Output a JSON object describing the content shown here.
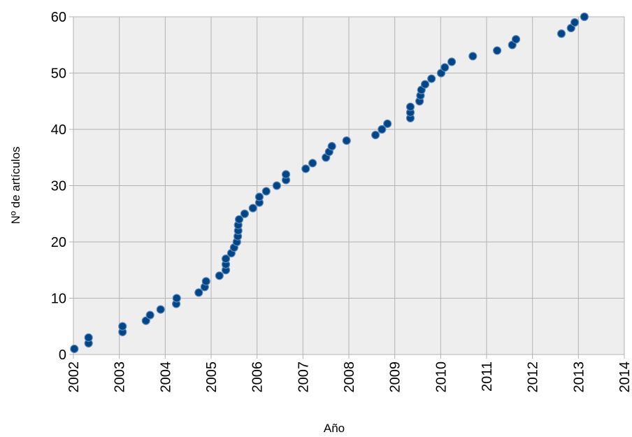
{
  "chart_data": {
    "type": "scatter",
    "xlabel": "Año",
    "ylabel": "Nº de artículos",
    "series": [
      {
        "color": "#004586",
        "x": [
          2002.02,
          2002.33,
          2002.33,
          2003.07,
          2003.07,
          2003.58,
          2003.67,
          2003.9,
          2004.24,
          2004.25,
          2004.73,
          2004.86,
          2004.89,
          2005.18,
          2005.32,
          2005.32,
          2005.32,
          2005.44,
          2005.5,
          2005.56,
          2005.58,
          2005.59,
          2005.59,
          2005.61,
          2005.73,
          2005.91,
          2006.05,
          2006.05,
          2006.2,
          2006.43,
          2006.63,
          2006.63,
          2007.06,
          2007.21,
          2007.5,
          2007.57,
          2007.63,
          2007.95,
          2008.58,
          2008.72,
          2008.84,
          2009.34,
          2009.34,
          2009.34,
          2009.54,
          2009.56,
          2009.58,
          2009.66,
          2009.8,
          2010.01,
          2010.09,
          2010.24,
          2010.7,
          2011.23,
          2011.56,
          2011.64,
          2012.63,
          2012.84,
          2012.92,
          2013.13
        ],
        "values": [
          1,
          2,
          3,
          4,
          5,
          6,
          7,
          8,
          9,
          10,
          11,
          12,
          13,
          14,
          15,
          16,
          17,
          18,
          19,
          20,
          21,
          22,
          23,
          24,
          25,
          26,
          27,
          28,
          29,
          30,
          31,
          32,
          33,
          34,
          35,
          36,
          37,
          38,
          39,
          40,
          41,
          42,
          43,
          44,
          45,
          46,
          47,
          48,
          49,
          50,
          51,
          52,
          53,
          54,
          55,
          56,
          57,
          58,
          59,
          60
        ]
      }
    ],
    "xlim": [
      2002,
      2014
    ],
    "xticks": [
      2002,
      2003,
      2004,
      2005,
      2006,
      2007,
      2008,
      2009,
      2010,
      2011,
      2012,
      2013,
      2014
    ],
    "ylim": [
      0,
      60
    ],
    "yticks": [
      0,
      10,
      20,
      30,
      40,
      50,
      60
    ],
    "grid": true
  }
}
